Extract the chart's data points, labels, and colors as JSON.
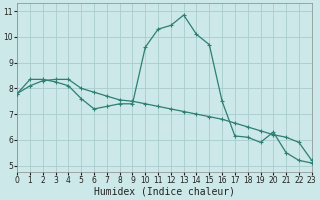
{
  "xlabel": "Humidex (Indice chaleur)",
  "background_color": "#cce8e8",
  "grid_color": "#aacccc",
  "line_color": "#2d7f72",
  "x_values": [
    0,
    1,
    2,
    3,
    4,
    5,
    6,
    7,
    8,
    9,
    10,
    11,
    12,
    13,
    14,
    15,
    16,
    17,
    18,
    19,
    20,
    21,
    22,
    23
  ],
  "y_curve": [
    7.8,
    8.35,
    8.35,
    8.25,
    8.1,
    7.6,
    7.2,
    7.3,
    7.4,
    7.4,
    9.6,
    10.3,
    10.45,
    10.85,
    10.1,
    9.7,
    7.5,
    6.15,
    6.1,
    5.9,
    6.3,
    5.5,
    5.2,
    5.1
  ],
  "y_trend": [
    7.8,
    8.1,
    8.3,
    8.35,
    8.35,
    8.0,
    7.85,
    7.7,
    7.55,
    7.5,
    7.4,
    7.3,
    7.2,
    7.1,
    7.0,
    6.9,
    6.8,
    6.65,
    6.5,
    6.35,
    6.2,
    6.1,
    5.9,
    5.2
  ],
  "xlim": [
    0,
    23
  ],
  "ylim": [
    4.75,
    11.3
  ],
  "yticks": [
    5,
    6,
    7,
    8,
    9,
    10,
    11
  ],
  "xticks": [
    0,
    1,
    2,
    3,
    4,
    5,
    6,
    7,
    8,
    9,
    10,
    11,
    12,
    13,
    14,
    15,
    16,
    17,
    18,
    19,
    20,
    21,
    22,
    23
  ],
  "xlabel_fontsize": 7,
  "tick_labelsize": 5.5
}
